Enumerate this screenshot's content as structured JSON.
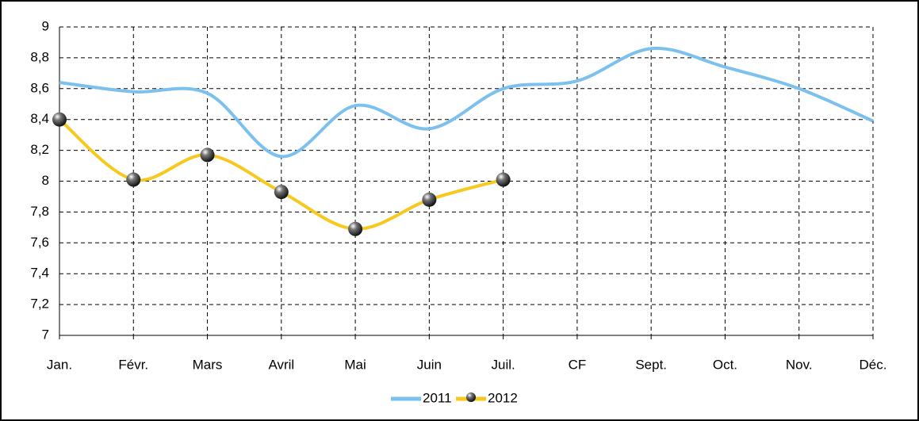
{
  "chart_data": {
    "type": "line",
    "categories": [
      "Jan.",
      "Févr.",
      "Mars",
      "Avril",
      "Mai",
      "Juin",
      "Juil.",
      "CF",
      "Sept.",
      "Oct.",
      "Nov.",
      "Déc."
    ],
    "series": [
      {
        "name": "2011",
        "color": "#7cc0ee",
        "values": [
          8.64,
          8.58,
          8.57,
          8.16,
          8.49,
          8.34,
          8.6,
          8.65,
          8.86,
          8.74,
          8.6,
          8.39
        ]
      },
      {
        "name": "2012",
        "color": "#f7c81e",
        "values": [
          8.4,
          8.01,
          8.17,
          7.93,
          7.69,
          7.88,
          8.01,
          null,
          null,
          null,
          null,
          null
        ]
      }
    ],
    "ylim": [
      7,
      9
    ],
    "yticks": [
      7,
      {
        "value": 7.2,
        "label": "7,2"
      },
      {
        "value": 7.4,
        "label": "7,4"
      },
      {
        "value": 7.6,
        "label": "7,6"
      },
      {
        "value": 7.8,
        "label": "7,8"
      },
      8,
      {
        "value": 8.2,
        "label": "8,2"
      },
      {
        "value": 8.4,
        "label": "8,4"
      },
      {
        "value": 8.6,
        "label": "8,6"
      },
      {
        "value": 8.8,
        "label": "8,8"
      },
      9
    ],
    "grid": true,
    "smooth": true,
    "legend": "bottom"
  }
}
